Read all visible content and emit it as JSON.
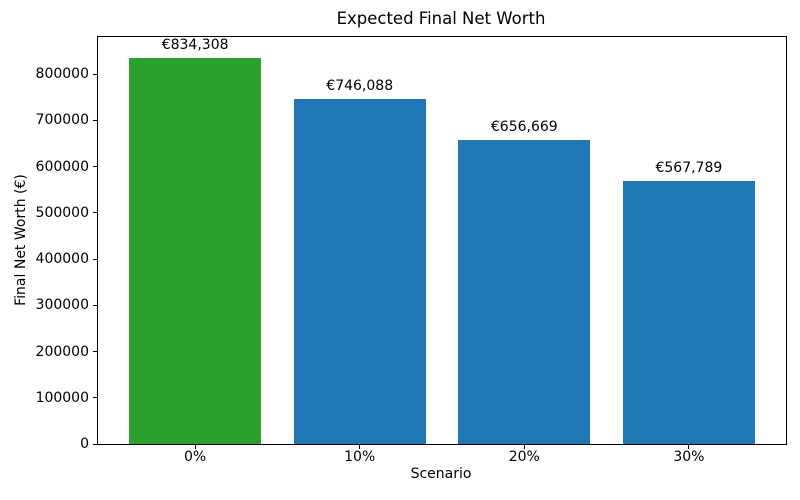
{
  "chart_data": {
    "type": "bar",
    "title": "Expected Final Net Worth",
    "xlabel": "Scenario",
    "ylabel": "Final Net Worth (€)",
    "categories": [
      "0%",
      "10%",
      "20%",
      "30%"
    ],
    "values": [
      834308,
      746088,
      656669,
      567789
    ],
    "value_labels": [
      "€834,308",
      "€746,088",
      "€656,669",
      "€567,789"
    ],
    "bar_colors": [
      "#2ca02c",
      "#1f77b4",
      "#1f77b4",
      "#1f77b4"
    ],
    "highlight_color": "#2ca02c",
    "default_color": "#1f77b4",
    "ylim": [
      0,
      880000
    ],
    "yticks": [
      0,
      100000,
      200000,
      300000,
      400000,
      500000,
      600000,
      700000,
      800000
    ],
    "ytick_labels": [
      "0",
      "100000",
      "200000",
      "300000",
      "400000",
      "500000",
      "600000",
      "700000",
      "800000"
    ],
    "bar_width_fraction": 0.8,
    "grid": false,
    "legend": "none",
    "spine_color": "#000000",
    "text_color": "#000000"
  }
}
